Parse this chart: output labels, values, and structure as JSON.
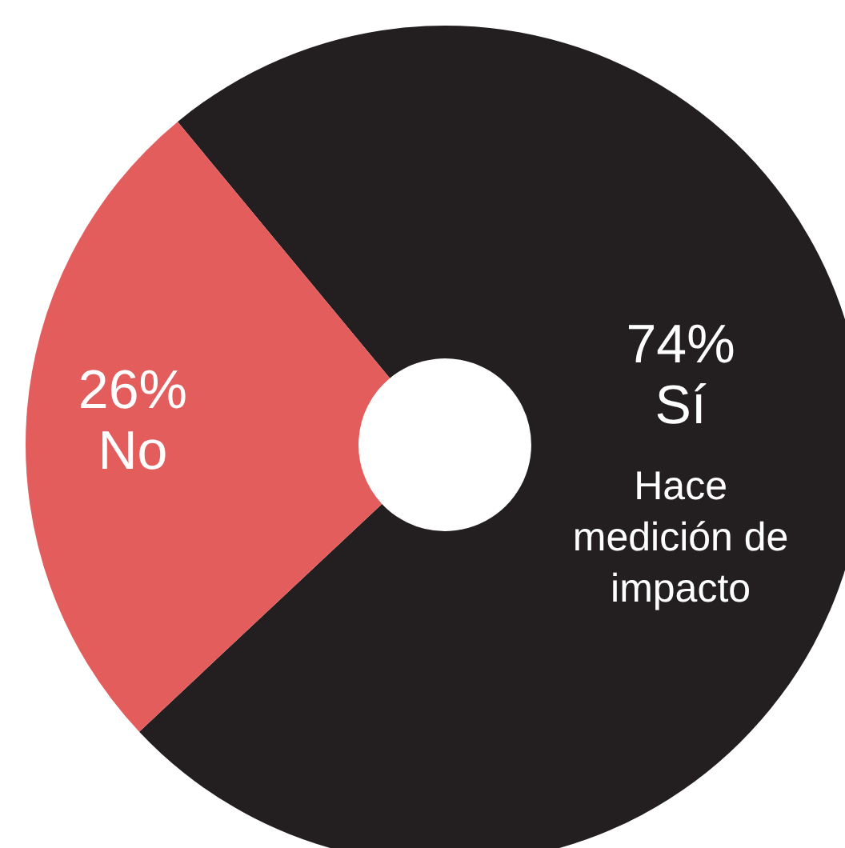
{
  "chart_data": {
    "type": "donut",
    "categories": [
      "Sí",
      "No"
    ],
    "values": [
      74,
      26
    ],
    "colors": [
      "#231f20",
      "#e35d5d"
    ],
    "value_labels": [
      "74%",
      "26%"
    ],
    "annotations": [
      "Hace medición de impacto"
    ]
  }
}
